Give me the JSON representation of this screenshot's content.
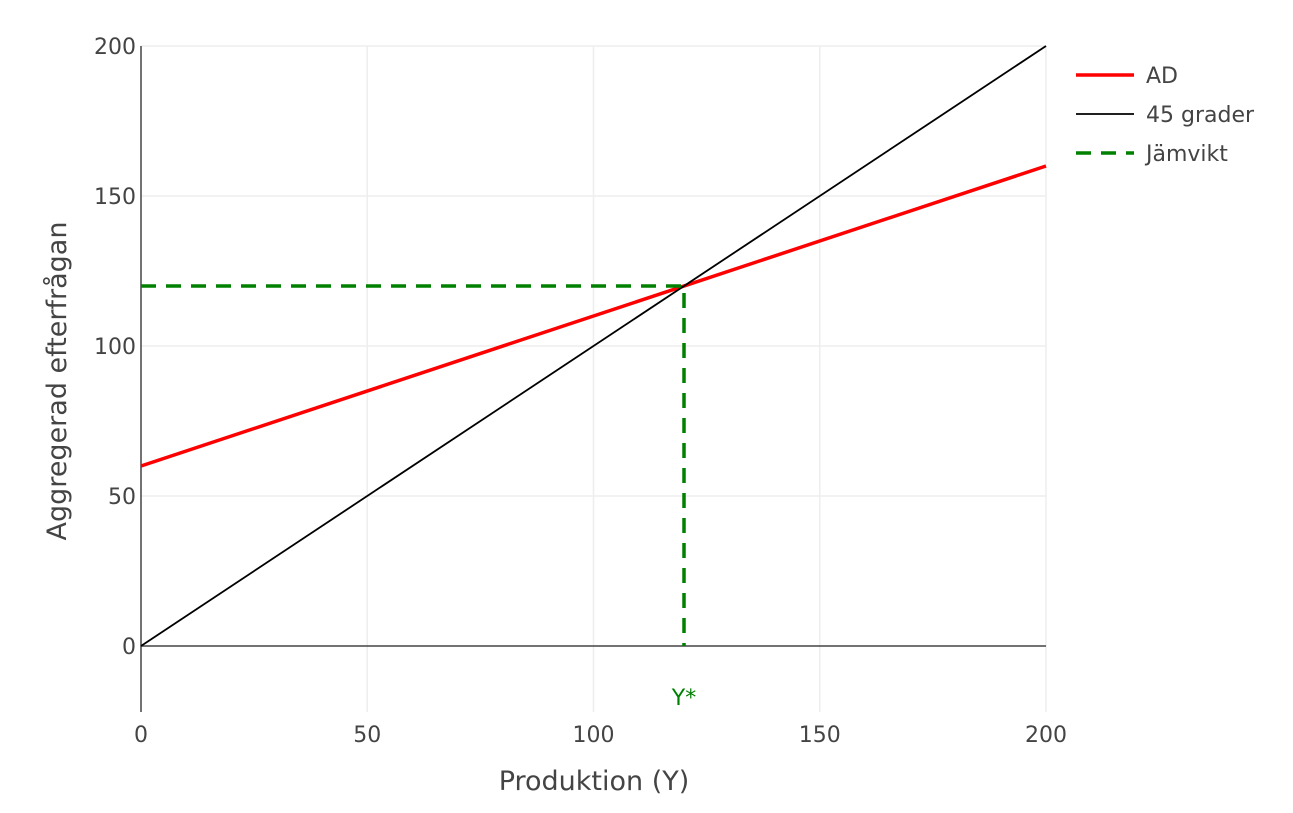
{
  "chart_data": {
    "type": "line",
    "title": "",
    "xlabel": "Produktion (Y)",
    "ylabel": "Aggregerad efterfrågan",
    "xlim": [
      0,
      200
    ],
    "ylim": [
      -22,
      200
    ],
    "x_ticks": [
      0,
      50,
      100,
      150,
      200
    ],
    "y_ticks": [
      0,
      50,
      100,
      150,
      200
    ],
    "grid": true,
    "legend_position": "top-right",
    "series": [
      {
        "name": "AD",
        "color": "#ff0000",
        "dash": "solid",
        "x": [
          0,
          200
        ],
        "y": [
          60,
          160
        ]
      },
      {
        "name": "45 grader",
        "color": "#000000",
        "dash": "solid",
        "x": [
          0,
          200
        ],
        "y": [
          0,
          200
        ]
      },
      {
        "name": "Jämvikt",
        "color": "#008000",
        "dash": "dashed",
        "x": [
          0,
          120,
          120
        ],
        "y": [
          120,
          120,
          0
        ]
      }
    ],
    "annotations": [
      {
        "text": "Y*",
        "x": 120,
        "color": "#008000"
      }
    ]
  }
}
